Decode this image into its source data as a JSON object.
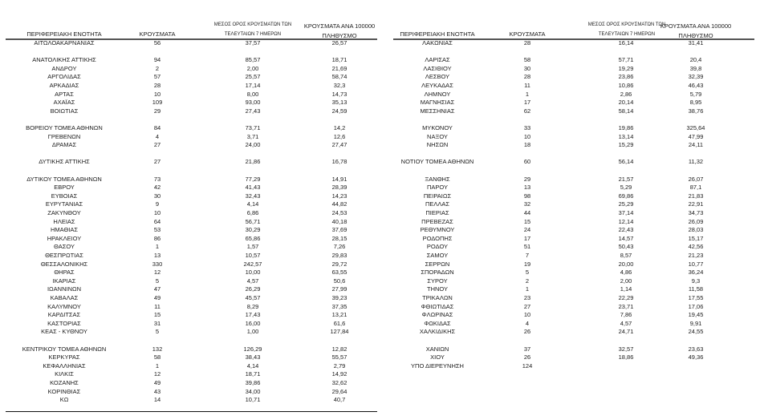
{
  "headers": {
    "region": "ΠΕΡΙΦΕΡΕΙΑΚΗ ΕΝΟΤΗΤΑ",
    "cases": "ΚΡΟΥΣΜΑΤΑ",
    "avg_line1": "ΜΕΣΟΣ ΟΡΟΣ ΚΡΟΥΣΜΑΤΩΝ ΤΩΝ",
    "avg_line2": "ΤΕΛΕΥΤΑΙΩΝ 7 ΗΜΕΡΩΝ",
    "per100k_line1": "ΚΡΟΥΣΜΑΤΑ ΑΝΑ 100000",
    "per100k_line2": "ΠΛΗΘΥΣΜΟ"
  },
  "left": {
    "groups": [
      [
        [
          "ΑΙΤΩΛΟΑΚΑΡΝΑΝΙΑΣ",
          "56",
          "37,57",
          "26,57"
        ]
      ],
      [
        [
          "ΑΝΑΤΟΛΙΚΗΣ ΑΤΤΙΚΗΣ",
          "94",
          "85,57",
          "18,71"
        ],
        [
          "ΑΝΔΡΟΥ",
          "2",
          "2,00",
          "21,69"
        ],
        [
          "ΑΡΓΟΛΙΔΑΣ",
          "57",
          "25,57",
          "58,74"
        ],
        [
          "ΑΡΚΑΔΙΑΣ",
          "28",
          "17,14",
          "32,3"
        ],
        [
          "ΑΡΤΑΣ",
          "10",
          "8,00",
          "14,73"
        ],
        [
          "ΑΧΑΪΑΣ",
          "109",
          "93,00",
          "35,13"
        ],
        [
          "ΒΟΙΩΤΙΑΣ",
          "29",
          "27,43",
          "24,59"
        ]
      ],
      [
        [
          "ΒΟΡΕΙΟΥ ΤΟΜΕΑ ΑΘΗΝΩΝ",
          "84",
          "73,71",
          "14,2"
        ],
        [
          "ΓΡΕΒΕΝΩΝ",
          "4",
          "3,71",
          "12,6"
        ],
        [
          "ΔΡΑΜΑΣ",
          "27",
          "24,00",
          "27,47"
        ]
      ],
      [
        [
          "ΔΥΤΙΚΗΣ ΑΤΤΙΚΗΣ",
          "27",
          "21,86",
          "16,78"
        ]
      ],
      [
        [
          "ΔΥΤΙΚΟΥ ΤΟΜΕΑ ΑΘΗΝΩΝ",
          "73",
          "77,29",
          "14,91"
        ],
        [
          "ΕΒΡΟΥ",
          "42",
          "41,43",
          "28,39"
        ],
        [
          "ΕΥΒΟΙΑΣ",
          "30",
          "32,43",
          "14,23"
        ],
        [
          "ΕΥΡΥΤΑΝΙΑΣ",
          "9",
          "4,14",
          "44,82"
        ],
        [
          "ΖΑΚΥΝΘΟΥ",
          "10",
          "6,86",
          "24,53"
        ],
        [
          "ΗΛΕΙΑΣ",
          "64",
          "56,71",
          "40,18"
        ],
        [
          "ΗΜΑΘΙΑΣ",
          "53",
          "30,29",
          "37,69"
        ],
        [
          "ΗΡΑΚΛΕΙΟΥ",
          "86",
          "65,86",
          "28,15"
        ],
        [
          "ΘΑΣΟΥ",
          "1",
          "1,57",
          "7,26"
        ],
        [
          "ΘΕΣΠΡΩΤΙΑΣ",
          "13",
          "10,57",
          "29,83"
        ],
        [
          "ΘΕΣΣΑΛΟΝΙΚΗΣ",
          "330",
          "242,57",
          "29,72"
        ],
        [
          "ΘΗΡΑΣ",
          "12",
          "10,00",
          "63,55"
        ],
        [
          "ΙΚΑΡΙΑΣ",
          "5",
          "4,57",
          "50,6"
        ],
        [
          "ΙΩΑΝΝΙΝΩΝ",
          "47",
          "26,29",
          "27,99"
        ],
        [
          "ΚΑΒΑΛΑΣ",
          "49",
          "45,57",
          "39,23"
        ],
        [
          "ΚΑΛΥΜΝΟΥ",
          "11",
          "8,29",
          "37,35"
        ],
        [
          "ΚΑΡΔΙΤΣΑΣ",
          "15",
          "17,43",
          "13,21"
        ],
        [
          "ΚΑΣΤΟΡΙΑΣ",
          "31",
          "16,00",
          "61,6"
        ],
        [
          "ΚΕΑΣ - ΚΥΘΝΟΥ",
          "5",
          "1,00",
          "127,84"
        ]
      ],
      [
        [
          "ΚΕΝΤΡΙΚΟΥ ΤΟΜΕΑ ΑΘΗΝΩΝ",
          "132",
          "126,29",
          "12,82"
        ],
        [
          "ΚΕΡΚΥΡΑΣ",
          "58",
          "38,43",
          "55,57"
        ],
        [
          "ΚΕΦΑΛΛΗΝΙΑΣ",
          "1",
          "4,14",
          "2,79"
        ],
        [
          "ΚΙΛΚΙΣ",
          "12",
          "18,71",
          "14,92"
        ],
        [
          "ΚΟΖΑΝΗΣ",
          "49",
          "39,86",
          "32,62"
        ],
        [
          "ΚΟΡΙΝΘΙΑΣ",
          "43",
          "34,00",
          "29,64"
        ],
        [
          "ΚΩ",
          "14",
          "10,71",
          "40,7"
        ]
      ]
    ]
  },
  "right": {
    "groups": [
      [
        [
          "ΛΑΚΩΝΙΑΣ",
          "28",
          "16,14",
          "31,41"
        ]
      ],
      [
        [
          "ΛΑΡΙΣΑΣ",
          "58",
          "57,71",
          "20,4"
        ],
        [
          "ΛΑΣΙΘΙΟΥ",
          "30",
          "19,29",
          "39,8"
        ],
        [
          "ΛΕΣΒΟΥ",
          "28",
          "23,86",
          "32,39"
        ],
        [
          "ΛΕΥΚΑΔΑΣ",
          "11",
          "10,86",
          "46,43"
        ],
        [
          "ΛΗΜΝΟΥ",
          "1",
          "2,86",
          "5,79"
        ],
        [
          "ΜΑΓΝΗΣΙΑΣ",
          "17",
          "20,14",
          "8,95"
        ],
        [
          "ΜΕΣΣΗΝΙΑΣ",
          "62",
          "58,14",
          "38,76"
        ]
      ],
      [
        [
          "ΜΥΚΟΝΟΥ",
          "33",
          "19,86",
          "325,64"
        ],
        [
          "ΝΑΞΟΥ",
          "10",
          "13,14",
          "47,99"
        ],
        [
          "ΝΗΣΩΝ",
          "18",
          "15,29",
          "24,11"
        ]
      ],
      [
        [
          "ΝΟΤΙΟΥ ΤΟΜΕΑ ΑΘΗΝΩΝ",
          "60",
          "56,14",
          "11,32"
        ]
      ],
      [
        [
          "ΞΑΝΘΗΣ",
          "29",
          "21,57",
          "26,07"
        ],
        [
          "ΠΑΡΟΥ",
          "13",
          "5,29",
          "87,1"
        ],
        [
          "ΠΕΙΡΑΙΩΣ",
          "98",
          "69,86",
          "21,83"
        ],
        [
          "ΠΕΛΛΑΣ",
          "32",
          "25,29",
          "22,91"
        ],
        [
          "ΠΙΕΡΙΑΣ",
          "44",
          "37,14",
          "34,73"
        ],
        [
          "ΠΡΕΒΕΖΑΣ",
          "15",
          "12,14",
          "26,09"
        ],
        [
          "ΡΕΘΥΜΝΟΥ",
          "24",
          "22,43",
          "28,03"
        ],
        [
          "ΡΟΔΟΠΗΣ",
          "17",
          "14,57",
          "15,17"
        ],
        [
          "ΡΟΔΟΥ",
          "51",
          "50,43",
          "42,56"
        ],
        [
          "ΣΑΜΟΥ",
          "7",
          "8,57",
          "21,23"
        ],
        [
          "ΣΕΡΡΩΝ",
          "19",
          "20,00",
          "10,77"
        ],
        [
          "ΣΠΟΡΑΔΩΝ",
          "5",
          "4,86",
          "36,24"
        ],
        [
          "ΣΥΡΟΥ",
          "2",
          "2,00",
          "9,3"
        ],
        [
          "ΤΗΝΟΥ",
          "1",
          "1,14",
          "11,58"
        ],
        [
          "ΤΡΙΚΑΛΩΝ",
          "23",
          "22,29",
          "17,55"
        ],
        [
          "ΦΘΙΩΤΙΔΑΣ",
          "27",
          "23,71",
          "17,06"
        ],
        [
          "ΦΛΩΡΙΝΑΣ",
          "10",
          "7,86",
          "19,45"
        ],
        [
          "ΦΩΚΙΔΑΣ",
          "4",
          "4,57",
          "9,91"
        ],
        [
          "ΧΑΛΚΙΔΙΚΗΣ",
          "26",
          "24,71",
          "24,55"
        ]
      ],
      [
        [
          "ΧΑΝΙΩΝ",
          "37",
          "32,57",
          "23,63"
        ],
        [
          "ΧΙΟΥ",
          "26",
          "18,86",
          "49,36"
        ],
        [
          "ΥΠΟ ΔΙΕΡΕΥΝΗΣΗ",
          "124",
          "",
          ""
        ]
      ]
    ]
  }
}
